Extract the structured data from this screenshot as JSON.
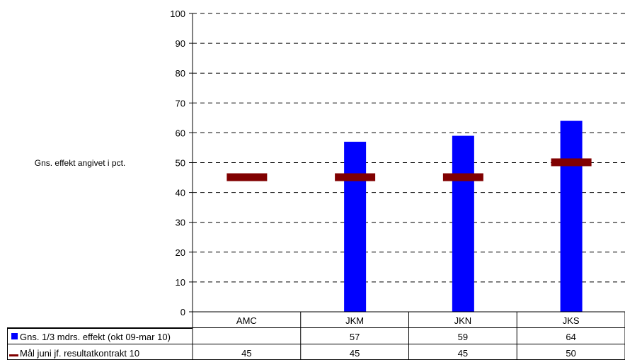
{
  "chart_data": {
    "type": "bar",
    "title": "",
    "xlabel": "",
    "ylabel": "Gns. effekt angivet i pct.",
    "ylim": [
      0,
      100
    ],
    "yticks": [
      0,
      10,
      20,
      30,
      40,
      50,
      60,
      70,
      80,
      90,
      100
    ],
    "grid": true,
    "categories": [
      "AMC",
      "JKM",
      "JKN",
      "JKS"
    ],
    "series": [
      {
        "name": "Gns. 1/3 mdrs. effekt (okt 09-mar 10)",
        "kind": "bar",
        "color": "#0000ff",
        "values": [
          null,
          57,
          59,
          64
        ],
        "labels": [
          "",
          "57",
          "59",
          "64"
        ]
      },
      {
        "name": "Mål juni jf. resultatkontrakt 10",
        "kind": "marker",
        "color": "#800000",
        "values": [
          45,
          45,
          45,
          50
        ],
        "labels": [
          "45",
          "45",
          "45",
          "50"
        ]
      }
    ]
  }
}
